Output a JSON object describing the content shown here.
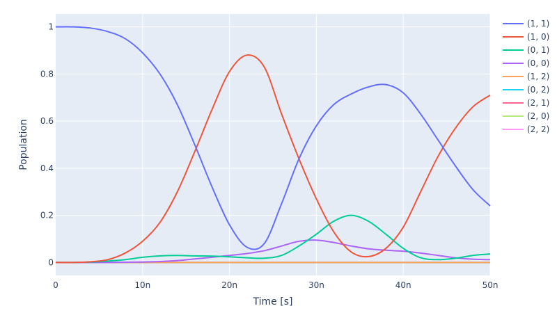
{
  "chart_data": {
    "type": "line",
    "title": "",
    "xlabel": "Time [s]",
    "ylabel": "Population",
    "xlim": [
      0,
      50
    ],
    "ylim": [
      -0.055,
      1.055
    ],
    "grid": true,
    "legend_position": "right",
    "x_ticks": [
      {
        "value": 0,
        "label": "0"
      },
      {
        "value": 10,
        "label": "10n"
      },
      {
        "value": 20,
        "label": "20n"
      },
      {
        "value": 30,
        "label": "30n"
      },
      {
        "value": 40,
        "label": "40n"
      },
      {
        "value": 50,
        "label": "50n"
      }
    ],
    "y_ticks": [
      {
        "value": 0,
        "label": "0"
      },
      {
        "value": 0.2,
        "label": "0.2"
      },
      {
        "value": 0.4,
        "label": "0.4"
      },
      {
        "value": 0.6,
        "label": "0.6"
      },
      {
        "value": 0.8,
        "label": "0.8"
      },
      {
        "value": 1,
        "label": "1"
      }
    ],
    "x_unit": "ns",
    "x": [
      0,
      2,
      4,
      6,
      8,
      10,
      12,
      14,
      16,
      18,
      20,
      22,
      24,
      26,
      28,
      30,
      32,
      34,
      36,
      38,
      40,
      42,
      44,
      46,
      48,
      50
    ],
    "series": [
      {
        "name": "(1, 1)",
        "color": "#636efa",
        "values": [
          1.0,
          1.0,
          0.995,
          0.98,
          0.95,
          0.89,
          0.8,
          0.67,
          0.5,
          0.32,
          0.16,
          0.065,
          0.08,
          0.25,
          0.44,
          0.58,
          0.67,
          0.715,
          0.745,
          0.755,
          0.72,
          0.63,
          0.52,
          0.41,
          0.31,
          0.24
        ]
      },
      {
        "name": "(1, 0)",
        "color": "#ef553b",
        "values": [
          0.0,
          0.0,
          0.003,
          0.012,
          0.04,
          0.09,
          0.17,
          0.3,
          0.47,
          0.65,
          0.81,
          0.88,
          0.83,
          0.63,
          0.44,
          0.27,
          0.13,
          0.045,
          0.025,
          0.06,
          0.15,
          0.3,
          0.45,
          0.57,
          0.66,
          0.71
        ]
      },
      {
        "name": "(0, 1)",
        "color": "#00cc96",
        "values": [
          0.0,
          0.0,
          0.002,
          0.006,
          0.012,
          0.022,
          0.028,
          0.03,
          0.028,
          0.027,
          0.024,
          0.02,
          0.018,
          0.03,
          0.07,
          0.12,
          0.175,
          0.2,
          0.175,
          0.12,
          0.06,
          0.02,
          0.012,
          0.018,
          0.03,
          0.036
        ]
      },
      {
        "name": "(0, 0)",
        "color": "#ab63fa",
        "values": [
          0.0,
          0.0,
          0.0,
          0.0,
          0.001,
          0.002,
          0.004,
          0.008,
          0.015,
          0.022,
          0.03,
          0.038,
          0.05,
          0.07,
          0.09,
          0.095,
          0.085,
          0.07,
          0.058,
          0.052,
          0.048,
          0.04,
          0.03,
          0.02,
          0.014,
          0.012
        ]
      },
      {
        "name": "(1, 2)",
        "color": "#ffa15a",
        "values": [
          0.0,
          0.0,
          0.0,
          0.0,
          0.0,
          0.0,
          0.0,
          0.0,
          0.0,
          0.0,
          0.0,
          0.0,
          0.0,
          0.0,
          0.0,
          0.0,
          0.0,
          0.0,
          0.0,
          0.0,
          0.0,
          0.0,
          0.0,
          0.0,
          0.0,
          0.0
        ]
      },
      {
        "name": "(0, 2)",
        "color": "#19d3f3",
        "values": [
          0.0,
          0.0,
          0.0,
          0.0,
          0.0,
          0.0,
          0.0,
          0.0,
          0.0,
          0.0,
          0.0,
          0.0,
          0.0,
          0.0,
          0.0,
          0.0,
          0.0,
          0.0,
          0.0,
          0.0,
          0.0,
          0.0,
          0.0,
          0.0,
          0.0,
          0.0
        ]
      },
      {
        "name": "(2, 1)",
        "color": "#ff6692",
        "values": [
          0.0,
          0.0,
          0.0,
          0.0,
          0.0,
          0.0,
          0.0,
          0.0,
          0.0,
          0.0,
          0.0,
          0.0,
          0.0,
          0.0,
          0.0,
          0.0,
          0.0,
          0.0,
          0.0,
          0.0,
          0.0,
          0.0,
          0.0,
          0.0,
          0.0,
          0.0
        ]
      },
      {
        "name": "(2, 0)",
        "color": "#b6e880",
        "values": [
          0.0,
          0.0,
          0.0,
          0.0,
          0.0,
          0.0,
          0.0,
          0.0,
          0.0,
          0.0,
          0.0,
          0.0,
          0.0,
          0.0,
          0.0,
          0.0,
          0.0,
          0.0,
          0.0,
          0.0,
          0.0,
          0.0,
          0.0,
          0.0,
          0.0,
          0.0
        ]
      },
      {
        "name": "(2, 2)",
        "color": "#ff97ff",
        "values": [
          0.0,
          0.0,
          0.0,
          0.0,
          0.0,
          0.0,
          0.0,
          0.0,
          0.0,
          0.0,
          0.0,
          0.0,
          0.0,
          0.0,
          0.0,
          0.0,
          0.0,
          0.0,
          0.0,
          0.0,
          0.0,
          0.0,
          0.0,
          0.0,
          0.0,
          0.0
        ]
      }
    ]
  },
  "colors": {
    "plot_background": "#e5ecf6",
    "grid": "#ffffff",
    "text": "#2a3f5f"
  }
}
